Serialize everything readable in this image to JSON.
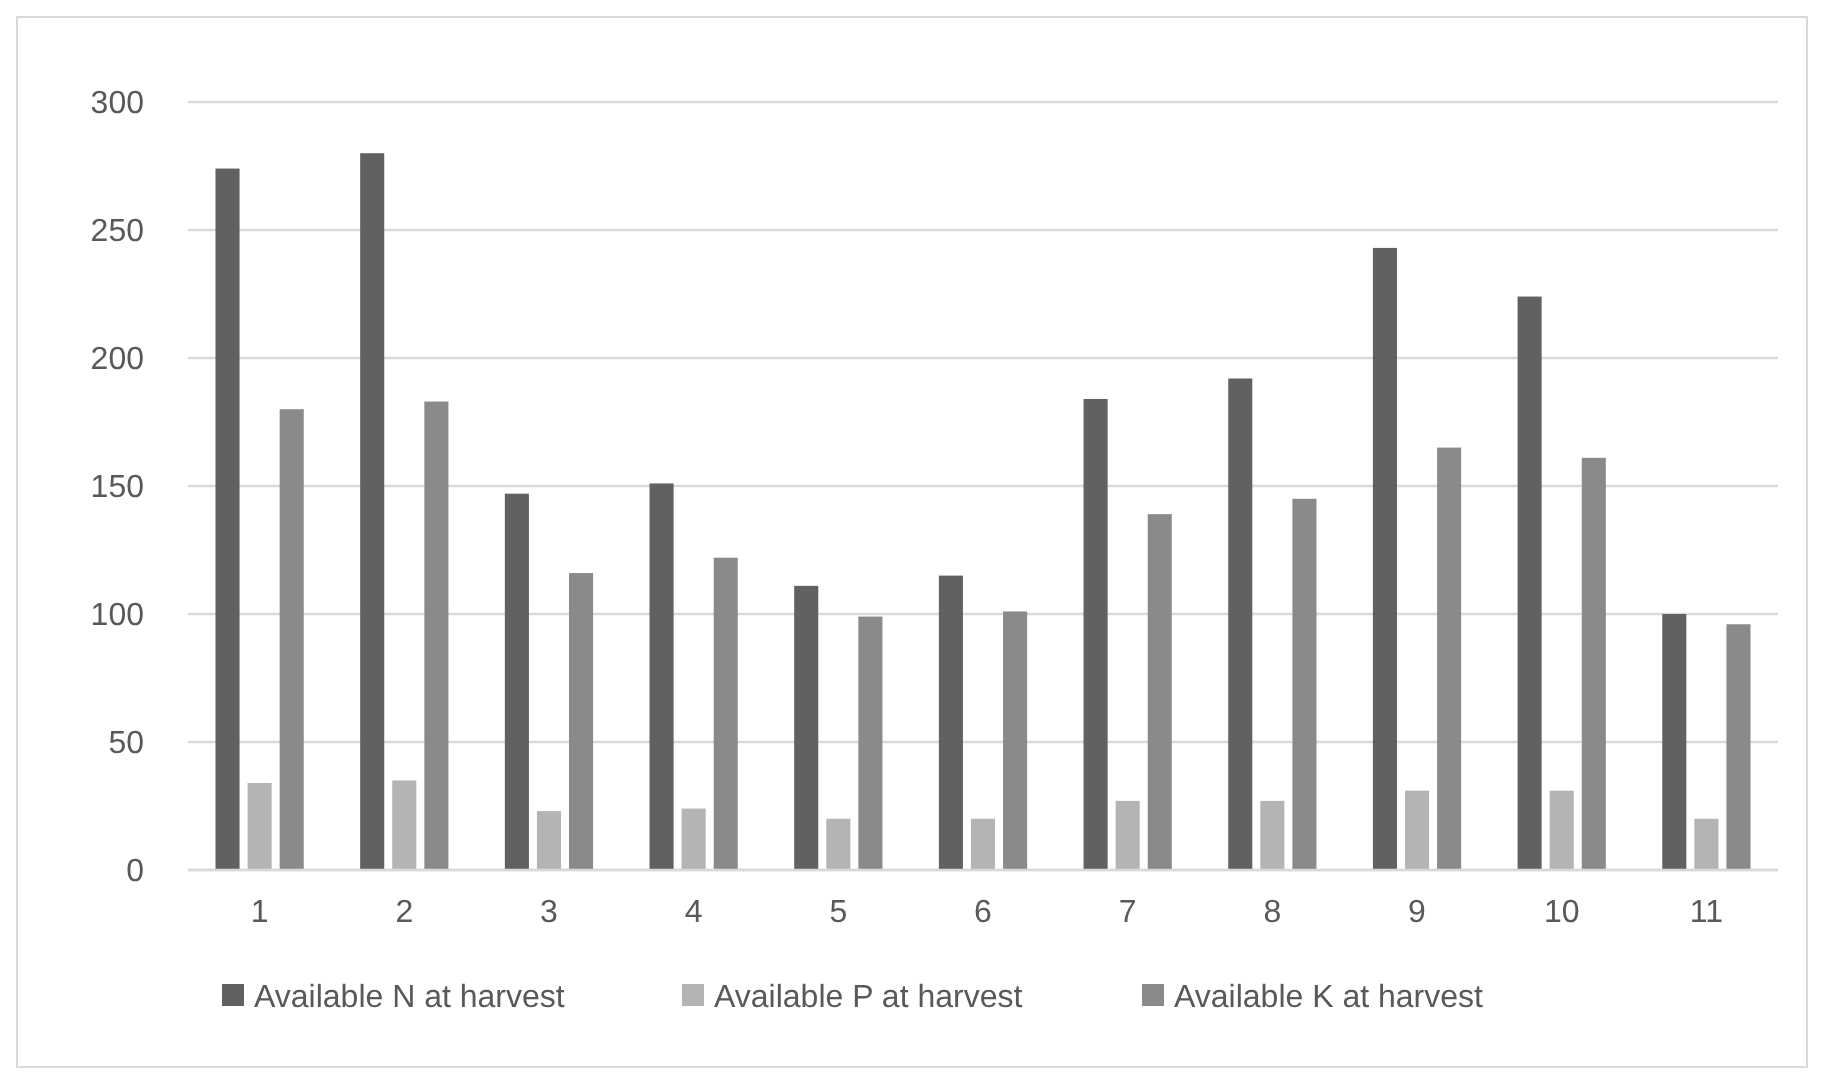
{
  "chart_data": {
    "type": "bar",
    "categories": [
      "1",
      "2",
      "3",
      "4",
      "5",
      "6",
      "7",
      "8",
      "9",
      "10",
      "11"
    ],
    "series": [
      {
        "name": "Available N at harvest",
        "color": "#616161",
        "values": [
          274,
          280,
          147,
          151,
          111,
          115,
          184,
          192,
          243,
          224,
          100
        ]
      },
      {
        "name": "Available P at harvest",
        "color": "#b4b4b4",
        "values": [
          34,
          35,
          23,
          24,
          20,
          20,
          27,
          27,
          31,
          31,
          20
        ]
      },
      {
        "name": "Available K at harvest",
        "color": "#8a8a8a",
        "values": [
          180,
          183,
          116,
          122,
          99,
          101,
          139,
          145,
          165,
          161,
          96
        ]
      }
    ],
    "ylim": [
      0,
      300
    ],
    "yticks": [
      0,
      50,
      100,
      150,
      200,
      250,
      300
    ],
    "grid": "y",
    "legend": "bottom"
  }
}
